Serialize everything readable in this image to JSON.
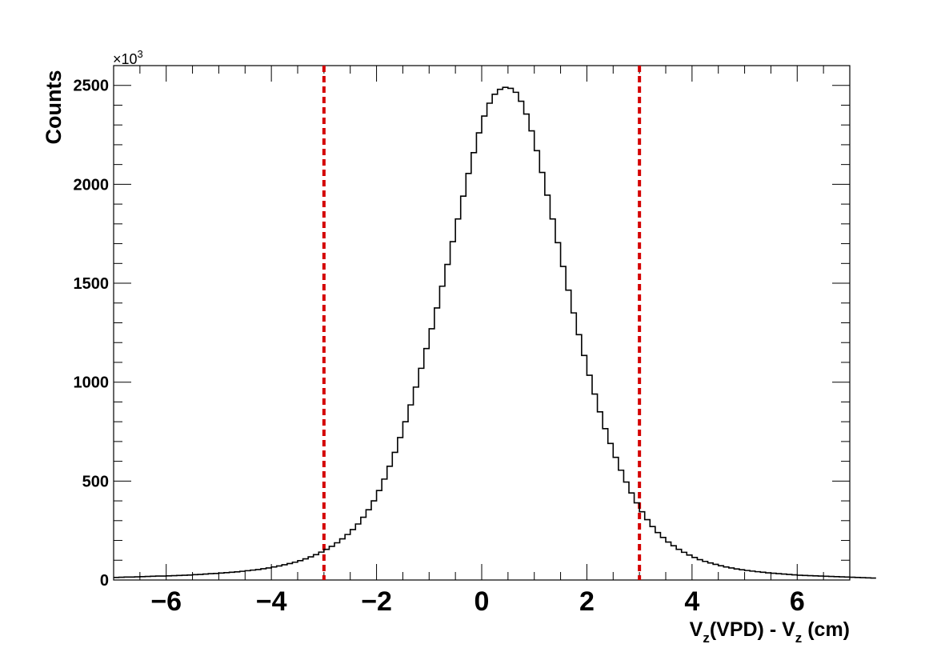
{
  "chart_data": {
    "type": "histogram",
    "title": "",
    "xlabel_main": "V",
    "xlabel_sub1": "z",
    "xlabel_mid": "(VPD) - V",
    "xlabel_sub2": "z",
    "xlabel_end": " (cm)",
    "ylabel": "Counts",
    "y_multiplier_base": "×10",
    "y_multiplier_exp": "3",
    "xlim": [
      -7,
      7
    ],
    "ylim": [
      0,
      2600
    ],
    "x_ticks": [
      -6,
      -4,
      -2,
      0,
      2,
      4,
      6
    ],
    "x_tick_labels": [
      "−6",
      "−4",
      "−2",
      "0",
      "2",
      "4",
      "6"
    ],
    "y_ticks": [
      0,
      500,
      1000,
      1500,
      2000,
      2500
    ],
    "y_tick_labels": [
      "0",
      "500",
      "1000",
      "1500",
      "2000",
      "2500"
    ],
    "cut_lines": [
      -3,
      3
    ],
    "cut_line_color": "#d40000",
    "line_color": "#000000",
    "bin_width": 0.1,
    "bin_start": -7,
    "counts": [
      13,
      14,
      15,
      15,
      16,
      17,
      18,
      19,
      20,
      20,
      21,
      22,
      23,
      24,
      25,
      27,
      28,
      30,
      32,
      33,
      35,
      37,
      39,
      41,
      44,
      47,
      50,
      53,
      57,
      61,
      66,
      71,
      77,
      83,
      90,
      98,
      107,
      117,
      128,
      141,
      155,
      170,
      188,
      208,
      230,
      255,
      283,
      317,
      355,
      400,
      452,
      510,
      575,
      645,
      720,
      800,
      885,
      975,
      1070,
      1170,
      1270,
      1375,
      1485,
      1595,
      1710,
      1825,
      1940,
      2055,
      2160,
      2260,
      2345,
      2410,
      2455,
      2480,
      2490,
      2485,
      2465,
      2420,
      2355,
      2270,
      2170,
      2060,
      1945,
      1825,
      1705,
      1585,
      1465,
      1350,
      1240,
      1135,
      1035,
      940,
      850,
      765,
      690,
      620,
      555,
      495,
      440,
      390,
      345,
      305,
      270,
      240,
      215,
      192,
      173,
      155,
      140,
      126,
      114,
      103,
      94,
      86,
      79,
      72,
      66,
      61,
      56,
      52,
      48,
      45,
      42,
      39,
      36,
      34,
      32,
      30,
      28,
      26,
      24,
      23,
      22,
      21,
      20,
      19,
      18,
      17,
      16,
      15,
      14,
      13,
      12,
      11,
      10
    ]
  }
}
